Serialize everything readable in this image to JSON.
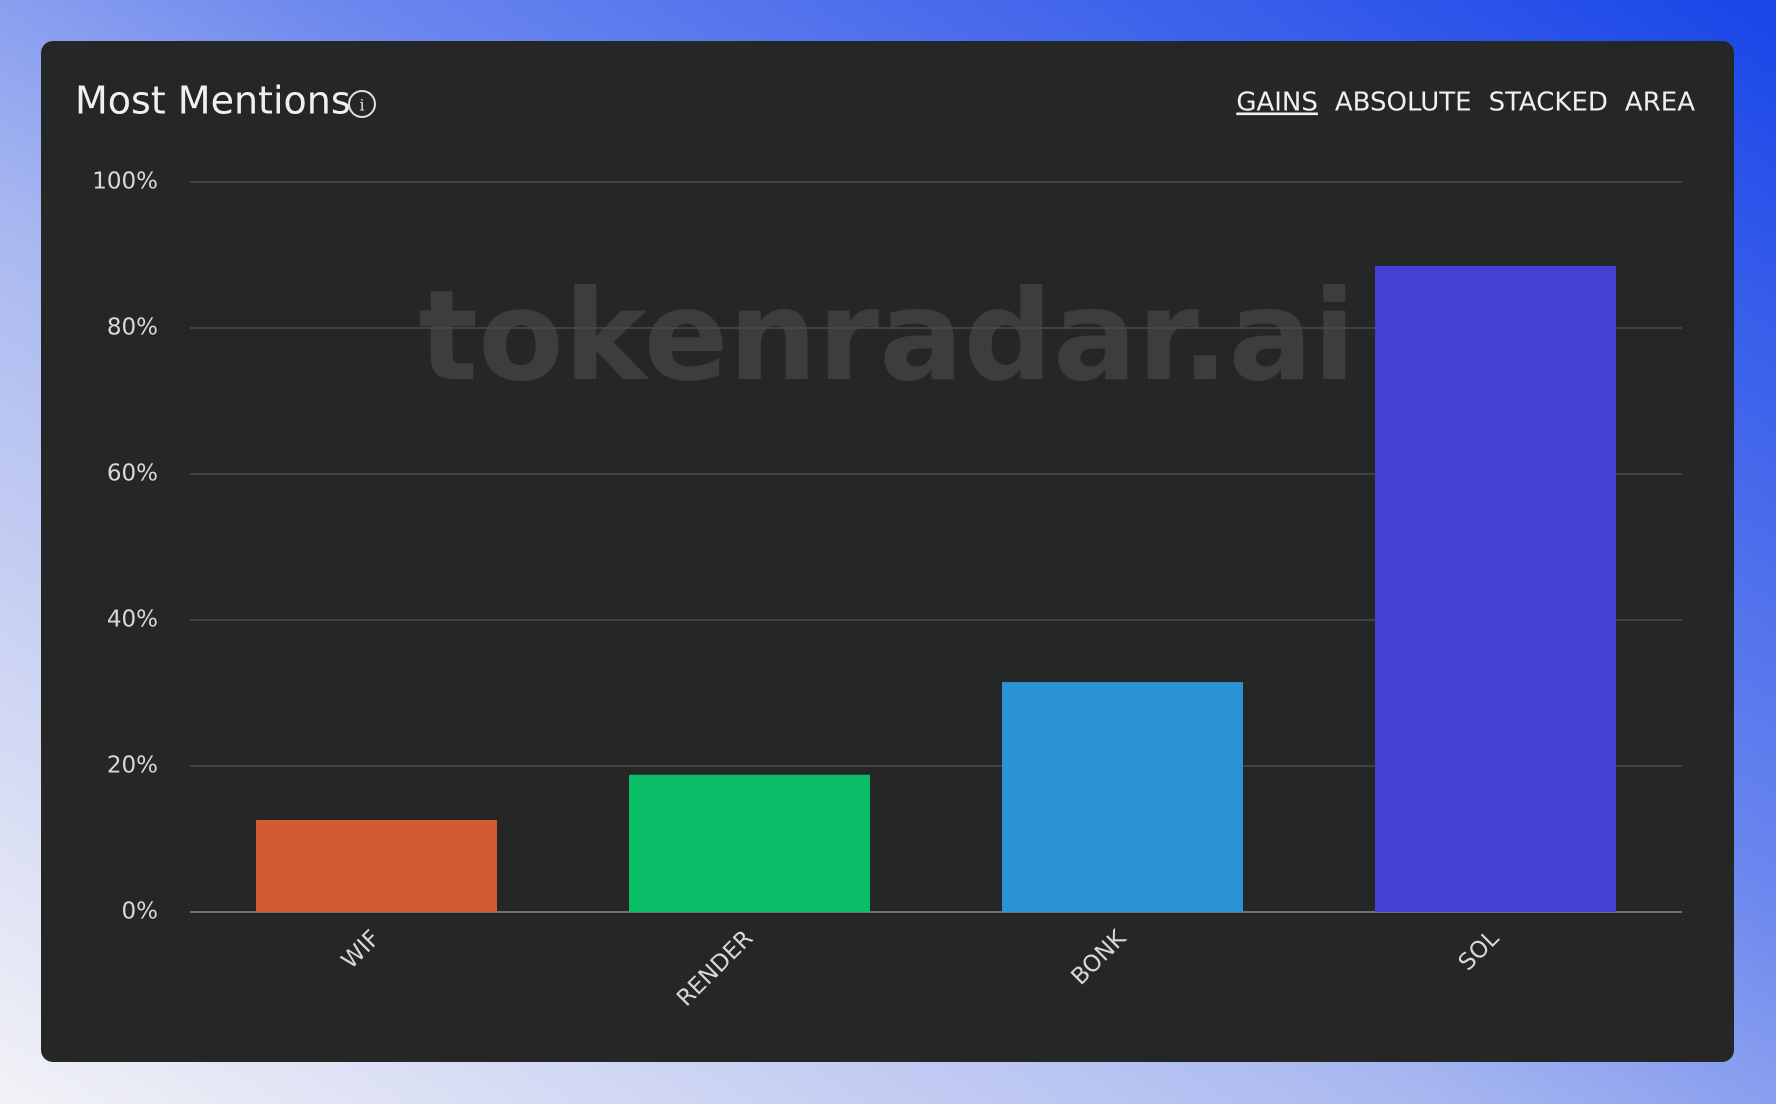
{
  "chart_data": {
    "type": "bar",
    "title": "Most Mentions",
    "tabs": [
      "GAINS",
      "ABSOLUTE",
      "STACKED",
      "AREA"
    ],
    "active_tab": "GAINS",
    "watermark": "tokenradar.ai",
    "categories": [
      "WIF",
      "RENDER",
      "BONK",
      "SOL"
    ],
    "values": [
      12.6,
      18.8,
      31.5,
      88.5
    ],
    "colors": [
      "#d35b32",
      "#0abd67",
      "#2b92d4",
      "#4541d2"
    ],
    "ylim": [
      0,
      100
    ],
    "yticks": [
      {
        "value": 0,
        "label": "0%"
      },
      {
        "value": 20,
        "label": "20%"
      },
      {
        "value": 40,
        "label": "40%"
      },
      {
        "value": 60,
        "label": "60%"
      },
      {
        "value": 80,
        "label": "80%"
      },
      {
        "value": 100,
        "label": "100%"
      }
    ],
    "grid": true
  }
}
